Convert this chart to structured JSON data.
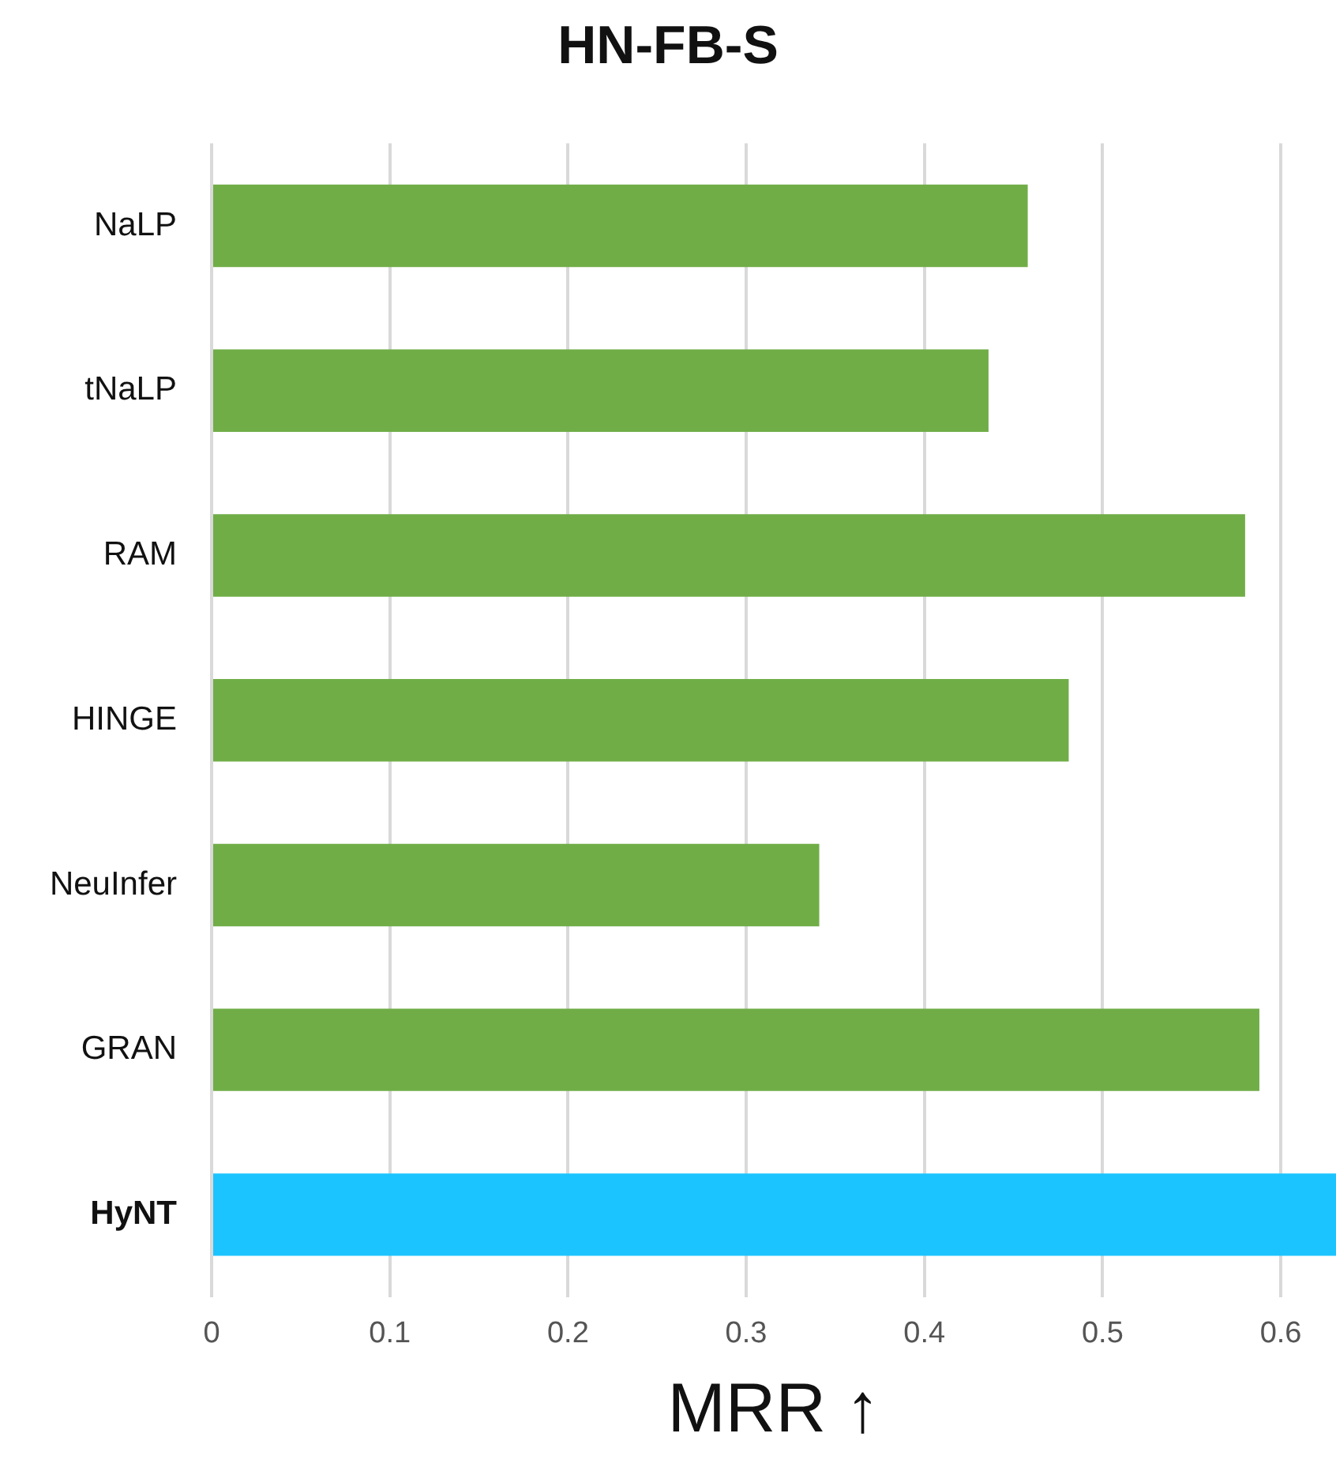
{
  "chart_data": {
    "type": "bar",
    "orientation": "horizontal",
    "title": "HN-FB-S",
    "xlabel": "MRR ↑",
    "categories": [
      "NaLP",
      "tNaLP",
      "RAM",
      "HINGE",
      "NeuInfer",
      "GRAN",
      "HyNT"
    ],
    "values": [
      0.458,
      0.436,
      0.58,
      0.481,
      0.341,
      0.588,
      0.631
    ],
    "colors": [
      "#70ad47",
      "#70ad47",
      "#70ad47",
      "#70ad47",
      "#70ad47",
      "#70ad47",
      "#1cc4ff"
    ],
    "xlim": [
      0,
      0.631
    ],
    "xticks": [
      0,
      0.1,
      0.2,
      0.3,
      0.4,
      0.5,
      0.6
    ],
    "grid": "x",
    "legend": false
  }
}
